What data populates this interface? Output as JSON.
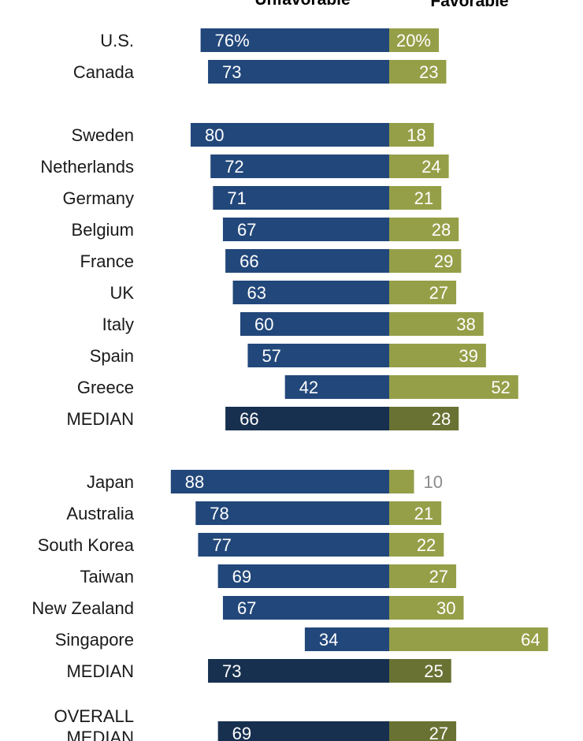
{
  "chart_data": {
    "type": "bar",
    "legend": {
      "unfavorable": "Unfavorable",
      "favorable": "Favorable"
    },
    "colors": {
      "unfavorable": "#22477a",
      "favorable": "#959f48",
      "median_unfavorable": "#18304f",
      "median_favorable": "#6a7233",
      "label_on_bar": "#ffffff",
      "label_outside": "#8c8c8c",
      "category_text": "#1a1a1a"
    },
    "rows": [
      {
        "label": "U.S.",
        "unfavorable": 76,
        "favorable": 20,
        "unfavorable_label": "76%",
        "favorable_label": "20%"
      },
      {
        "label": "Canada",
        "unfavorable": 73,
        "favorable": 23,
        "unfavorable_label": "73",
        "favorable_label": "23"
      },
      {
        "label": "Sweden",
        "unfavorable": 80,
        "favorable": 18,
        "unfavorable_label": "80",
        "favorable_label": "18"
      },
      {
        "label": "Netherlands",
        "unfavorable": 72,
        "favorable": 24,
        "unfavorable_label": "72",
        "favorable_label": "24"
      },
      {
        "label": "Germany",
        "unfavorable": 71,
        "favorable": 21,
        "unfavorable_label": "71",
        "favorable_label": "21"
      },
      {
        "label": "Belgium",
        "unfavorable": 67,
        "favorable": 28,
        "unfavorable_label": "67",
        "favorable_label": "28"
      },
      {
        "label": "France",
        "unfavorable": 66,
        "favorable": 29,
        "unfavorable_label": "66",
        "favorable_label": "29"
      },
      {
        "label": "UK",
        "unfavorable": 63,
        "favorable": 27,
        "unfavorable_label": "63",
        "favorable_label": "27"
      },
      {
        "label": "Italy",
        "unfavorable": 60,
        "favorable": 38,
        "unfavorable_label": "60",
        "favorable_label": "38"
      },
      {
        "label": "Spain",
        "unfavorable": 57,
        "favorable": 39,
        "unfavorable_label": "57",
        "favorable_label": "39"
      },
      {
        "label": "Greece",
        "unfavorable": 42,
        "favorable": 52,
        "unfavorable_label": "42",
        "favorable_label": "52"
      },
      {
        "label": "MEDIAN",
        "unfavorable": 66,
        "favorable": 28,
        "unfavorable_label": "66",
        "favorable_label": "28",
        "median": true
      },
      {
        "label": "Japan",
        "unfavorable": 88,
        "favorable": 10,
        "unfavorable_label": "88",
        "favorable_label": "10"
      },
      {
        "label": "Australia",
        "unfavorable": 78,
        "favorable": 21,
        "unfavorable_label": "78",
        "favorable_label": "21"
      },
      {
        "label": "South Korea",
        "unfavorable": 77,
        "favorable": 22,
        "unfavorable_label": "77",
        "favorable_label": "22"
      },
      {
        "label": "Taiwan",
        "unfavorable": 69,
        "favorable": 27,
        "unfavorable_label": "69",
        "favorable_label": "27"
      },
      {
        "label": "New Zealand",
        "unfavorable": 67,
        "favorable": 30,
        "unfavorable_label": "67",
        "favorable_label": "30"
      },
      {
        "label": "Singapore",
        "unfavorable": 34,
        "favorable": 64,
        "unfavorable_label": "34",
        "favorable_label": "64"
      },
      {
        "label": "MEDIAN",
        "unfavorable": 73,
        "favorable": 25,
        "unfavorable_label": "73",
        "favorable_label": "25",
        "median": true
      },
      {
        "label": "OVERALL MEDIAN",
        "label_lines": [
          "OVERALL",
          "MEDIAN"
        ],
        "unfavorable": 69,
        "favorable": 27,
        "unfavorable_label": "69",
        "favorable_label": "27",
        "median": true
      }
    ]
  }
}
